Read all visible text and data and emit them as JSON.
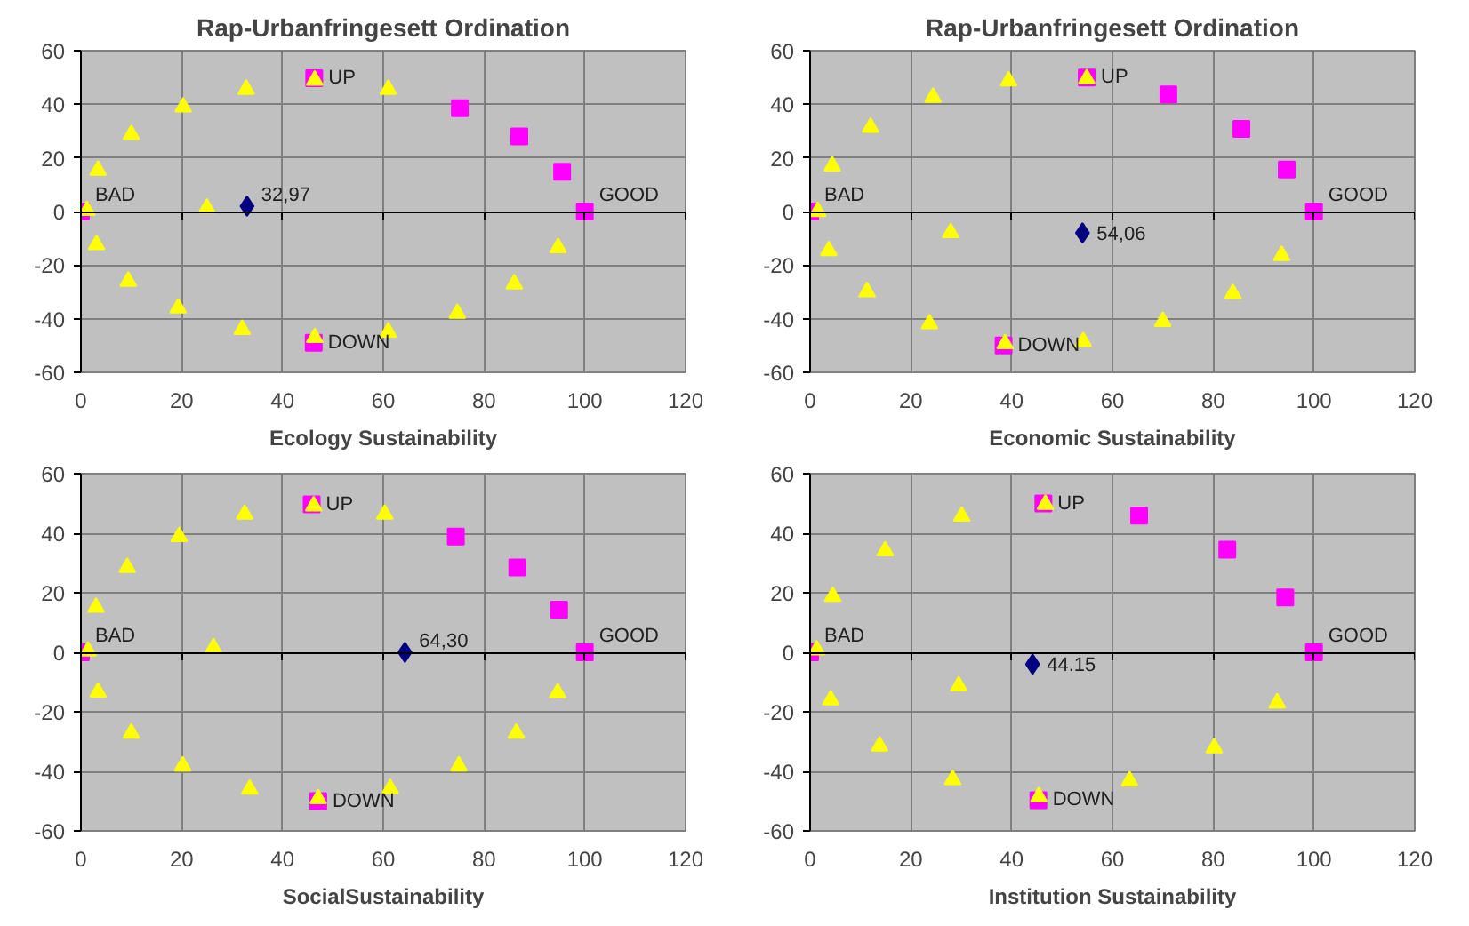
{
  "chart_data": [
    {
      "type": "scatter",
      "title": "Rap-Urbanfringesett Ordination",
      "xlabel": "Ecology Sustainability",
      "xlim": [
        0,
        120
      ],
      "ylim": [
        -60,
        60
      ],
      "xticks": [
        0,
        20,
        40,
        60,
        80,
        100,
        120
      ],
      "yticks": [
        -60,
        -40,
        -20,
        0,
        20,
        40,
        60
      ],
      "grid": true,
      "series": [
        {
          "color": "#ff00ff",
          "marker": "square",
          "x": [
            0,
            46.3,
            46.2,
            75.2,
            87,
            95.5,
            100
          ],
          "values": [
            0,
            49.7,
            -49,
            38.5,
            28,
            14.8,
            0
          ]
        },
        {
          "color": "#ffff00",
          "marker": "triangle",
          "x": [
            1.2,
            3.4,
            10,
            20.3,
            32.8,
            46.4,
            61,
            3.1,
            9.4,
            19.3,
            32,
            46.4,
            61,
            74.7,
            86,
            94.7,
            25
          ],
          "values": [
            0.4,
            15.4,
            28.7,
            39,
            45.6,
            49,
            45.6,
            -12.4,
            -26,
            -36,
            -44,
            -47,
            -45,
            -38,
            -27,
            -13.5,
            1.3
          ]
        },
        {
          "color": "#000080",
          "marker": "diamond",
          "x": [
            32.97
          ],
          "values": [
            2
          ]
        }
      ],
      "annotations": [
        {
          "text": "BAD",
          "x": 0,
          "y": 0
        },
        {
          "text": "UP",
          "x": 46.3,
          "y": 49.7
        },
        {
          "text": "DOWN",
          "x": 46.2,
          "y": -49
        },
        {
          "text": "GOOD",
          "x": 100,
          "y": 0
        },
        {
          "text": "32,97",
          "x": 32.97,
          "y": 2
        }
      ]
    },
    {
      "type": "scatter",
      "title": "Rap-Urbanfringesett Ordination",
      "xlabel": "Economic Sustainability",
      "xlim": [
        0,
        120
      ],
      "ylim": [
        -60,
        60
      ],
      "xticks": [
        0,
        20,
        40,
        60,
        80,
        100,
        120
      ],
      "yticks": [
        -60,
        -40,
        -20,
        0,
        20,
        40,
        60
      ],
      "grid": true,
      "series": [
        {
          "color": "#ff00ff",
          "marker": "square",
          "x": [
            0,
            54.9,
            38.4,
            71.1,
            85.6,
            94.6,
            100
          ],
          "values": [
            0,
            50,
            -50,
            43.7,
            30.8,
            15.7,
            0
          ]
        },
        {
          "color": "#ffff00",
          "marker": "triangle",
          "x": [
            1.5,
            4.4,
            12,
            24.4,
            39.4,
            54.9,
            3.7,
            11.3,
            23.7,
            27.9,
            38.7,
            54.2,
            70,
            83.9,
            93.6
          ],
          "values": [
            0,
            17,
            31.4,
            42.6,
            48.7,
            49.5,
            -14.6,
            -29.9,
            -41.9,
            -7.9,
            -49.3,
            -48.5,
            -41,
            -30.6,
            -16.4
          ]
        },
        {
          "color": "#000080",
          "marker": "diamond",
          "x": [
            54.06
          ],
          "values": [
            -8
          ]
        }
      ],
      "annotations": [
        {
          "text": "BAD",
          "x": 0,
          "y": 0
        },
        {
          "text": "UP",
          "x": 54.9,
          "y": 50
        },
        {
          "text": "DOWN",
          "x": 38.4,
          "y": -50
        },
        {
          "text": "GOOD",
          "x": 100,
          "y": 0
        },
        {
          "text": "54,06",
          "x": 54.06,
          "y": -8
        }
      ]
    },
    {
      "type": "scatter",
      "xlabel": "SocialSustainability",
      "xlim": [
        0,
        120
      ],
      "ylim": [
        -60,
        60
      ],
      "xticks": [
        0,
        20,
        40,
        60,
        80,
        100,
        120
      ],
      "yticks": [
        -60,
        -40,
        -20,
        0,
        20,
        40,
        60
      ],
      "grid": true,
      "series": [
        {
          "color": "#ff00ff",
          "marker": "square",
          "x": [
            0,
            45.8,
            47.1,
            74.4,
            86.6,
            94.9,
            100
          ],
          "values": [
            0,
            49.7,
            -50,
            38.9,
            28.5,
            14.3,
            0
          ]
        },
        {
          "color": "#ffff00",
          "marker": "triangle",
          "x": [
            1.4,
            3,
            9.2,
            19.5,
            32.5,
            46.2,
            60.3,
            3.4,
            10,
            20.2,
            33.5,
            47.1,
            61.4,
            75,
            86.4,
            94.6,
            26.3
          ],
          "values": [
            0.4,
            15.1,
            28.5,
            38.9,
            46.4,
            49.2,
            46.4,
            -13.4,
            -27.2,
            -38.2,
            -46,
            -49.2,
            -45.8,
            -38.2,
            -27.2,
            -13.6,
            1.5
          ]
        },
        {
          "color": "#000080",
          "marker": "diamond",
          "x": [
            64.3
          ],
          "values": [
            0
          ]
        }
      ],
      "annotations": [
        {
          "text": "BAD",
          "x": 0,
          "y": 0
        },
        {
          "text": "UP",
          "x": 45.8,
          "y": 49.7
        },
        {
          "text": "DOWN",
          "x": 47.1,
          "y": -50
        },
        {
          "text": "GOOD",
          "x": 100,
          "y": 0
        },
        {
          "text": "64,30",
          "x": 64.3,
          "y": 0
        }
      ]
    },
    {
      "type": "scatter",
      "xlabel": "Institution Sustainability",
      "xlim": [
        0,
        120
      ],
      "ylim": [
        -60,
        60
      ],
      "xticks": [
        0,
        20,
        40,
        60,
        80,
        100,
        120
      ],
      "yticks": [
        -60,
        -40,
        -20,
        0,
        20,
        40,
        60
      ],
      "grid": true,
      "series": [
        {
          "color": "#ff00ff",
          "marker": "square",
          "x": [
            0,
            46.3,
            45.3,
            65.3,
            82.8,
            94.3,
            100
          ],
          "values": [
            0,
            50,
            -49.7,
            45.9,
            34.5,
            18.4,
            0
          ]
        },
        {
          "color": "#ffff00",
          "marker": "triangle",
          "x": [
            1.3,
            4.5,
            14.9,
            30.1,
            46.7,
            4.1,
            13.8,
            29.5,
            28.3,
            45.4,
            63.4,
            80.2,
            92.7
          ],
          "values": [
            0.8,
            18.8,
            34.1,
            45.7,
            49.7,
            -16,
            -31.5,
            -11.3,
            -42.8,
            -48.5,
            -43.2,
            -32.1,
            -17
          ]
        },
        {
          "color": "#000080",
          "marker": "diamond",
          "x": [
            44.15
          ],
          "values": [
            -4
          ]
        }
      ],
      "annotations": [
        {
          "text": "BAD",
          "x": 0,
          "y": 0
        },
        {
          "text": "UP",
          "x": 46.3,
          "y": 50
        },
        {
          "text": "DOWN",
          "x": 45.3,
          "y": -49.7
        },
        {
          "text": "GOOD",
          "x": 100,
          "y": 0
        },
        {
          "text": "44.15",
          "x": 44.15,
          "y": -4
        }
      ]
    }
  ]
}
